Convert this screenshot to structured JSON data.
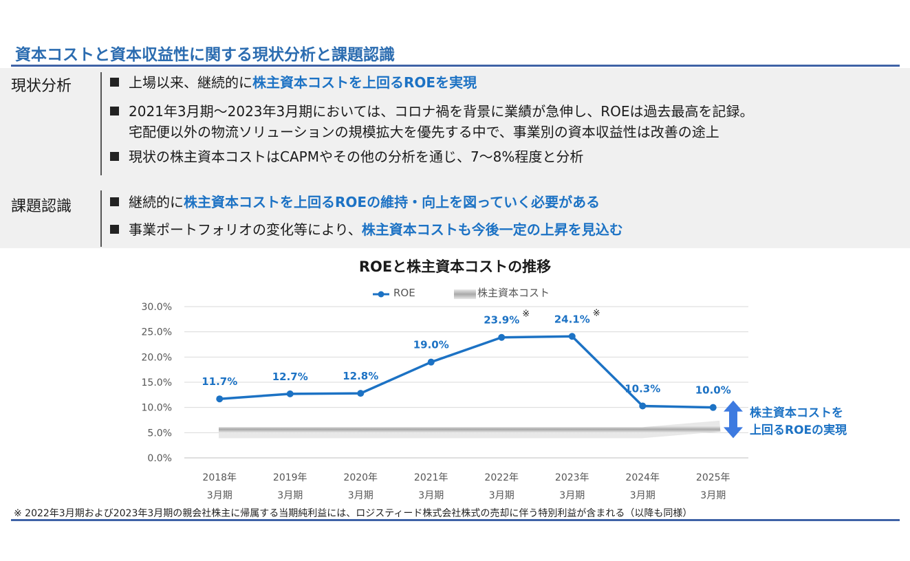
{
  "title": "資本コストと資本収益性に関する現状分析と課題認識",
  "sections": [
    {
      "label": "現状分析",
      "bullets": [
        {
          "pre": "上場以来、継続的に",
          "hl": "株主資本コストを上回るROEを実現",
          "post": ""
        },
        {
          "pre": "2021年3月期～2023年3月期においては、コロナ禍を背景に業績が急伸し、ROEは過去最高を記録。",
          "hl": "",
          "post": "",
          "cont": "宅配便以外の物流ソリューションの規模拡大を優先する中で、事業別の資本収益性は改善の途上"
        },
        {
          "pre": "現状の株主資本コストはCAPMやその他の分析を通じ、7～8%程度と分析",
          "hl": "",
          "post": ""
        }
      ]
    },
    {
      "label": "課題認識",
      "bullets": [
        {
          "pre": "継続的に",
          "hl": "株主資本コストを上回るROEの維持・向上を図っていく必要がある",
          "post": ""
        },
        {
          "pre": "事業ポートフォリオの変化等により、",
          "hl": "株主資本コストも今後一定の上昇を見込む",
          "post": ""
        }
      ]
    }
  ],
  "chart_data": {
    "type": "line",
    "title": "ROEと株主資本コストの推移",
    "categories": [
      [
        "2018年",
        "3月期"
      ],
      [
        "2019年",
        "3月期"
      ],
      [
        "2020年",
        "3月期"
      ],
      [
        "2021年",
        "3月期"
      ],
      [
        "2022年",
        "3月期"
      ],
      [
        "2023年",
        "3月期"
      ],
      [
        "2024年",
        "3月期"
      ],
      [
        "2025年",
        "3月期"
      ]
    ],
    "series": [
      {
        "name": "ROE",
        "values": [
          11.7,
          12.7,
          12.8,
          19.0,
          23.9,
          24.1,
          10.3,
          10.0
        ],
        "labels": [
          "11.7%",
          "12.7%",
          "12.8%",
          "19.0%",
          "23.9%",
          "24.1%",
          "10.3%",
          "10.0%"
        ],
        "marks": [
          "",
          "",
          "",
          "",
          "※",
          "※",
          "",
          ""
        ],
        "color": "#1c72c4"
      },
      {
        "name": "株主資本コスト",
        "values": [
          5.0,
          5.0,
          5.0,
          5.0,
          5.0,
          5.0,
          5.0,
          6.3
        ],
        "color": "#b0b0b0"
      }
    ],
    "yticks": [
      "0.0%",
      "5.0%",
      "10.0%",
      "15.0%",
      "20.0%",
      "25.0%",
      "30.0%"
    ],
    "ylim": [
      0,
      30
    ],
    "annotation": [
      "株主資本コストを",
      "上回るROEの実現"
    ],
    "legend_position": "top",
    "grid": true
  },
  "footnote": "※ 2022年3月期および2023年3月期の親会社株主に帰属する当期純利益には、ロジスティード株式会社株式の売却に伴う特別利益が含まれる（以降も同様）"
}
